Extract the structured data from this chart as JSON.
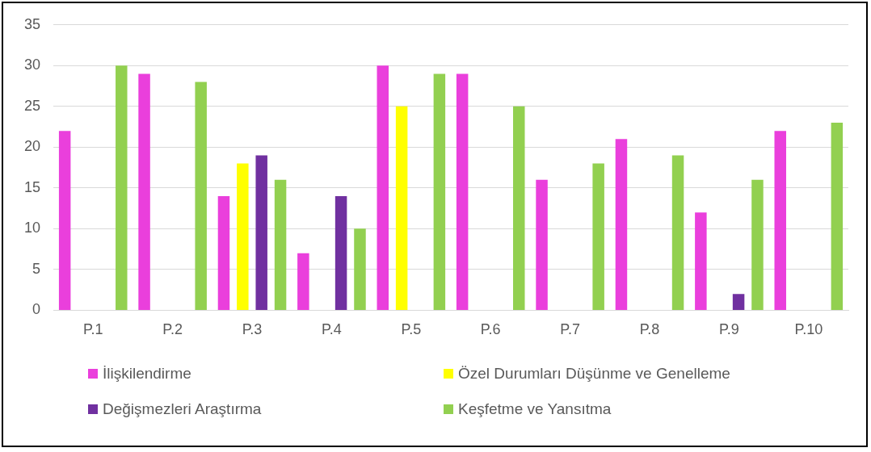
{
  "chart_data": {
    "type": "bar",
    "categories": [
      "P.1",
      "P.2",
      "P.3",
      "P.4",
      "P.5",
      "P.6",
      "P.7",
      "P.8",
      "P.9",
      "P.10"
    ],
    "series": [
      {
        "name": "İlişkilendirme",
        "color": "#ea3fdc",
        "values": [
          22,
          29,
          14,
          7,
          30,
          29,
          16,
          21,
          12,
          22
        ]
      },
      {
        "name": "Özel Durumları Düşünme ve Genelleme",
        "color": "#ffff00",
        "values": [
          0,
          0,
          18,
          0,
          25,
          0,
          0,
          0,
          0,
          0
        ]
      },
      {
        "name": "Değişmezleri Araştırma",
        "color": "#7030a0",
        "values": [
          0,
          0,
          19,
          14,
          0,
          0,
          0,
          0,
          2,
          0
        ]
      },
      {
        "name": "Keşfetme ve Yansıtma",
        "color": "#92d050",
        "values": [
          30,
          28,
          16,
          10,
          29,
          25,
          18,
          19,
          16,
          23
        ]
      }
    ],
    "ylim": [
      0,
      35
    ],
    "yticks": [
      0,
      5,
      10,
      15,
      20,
      25,
      30,
      35
    ],
    "grid": "y",
    "legend": "bottom"
  }
}
